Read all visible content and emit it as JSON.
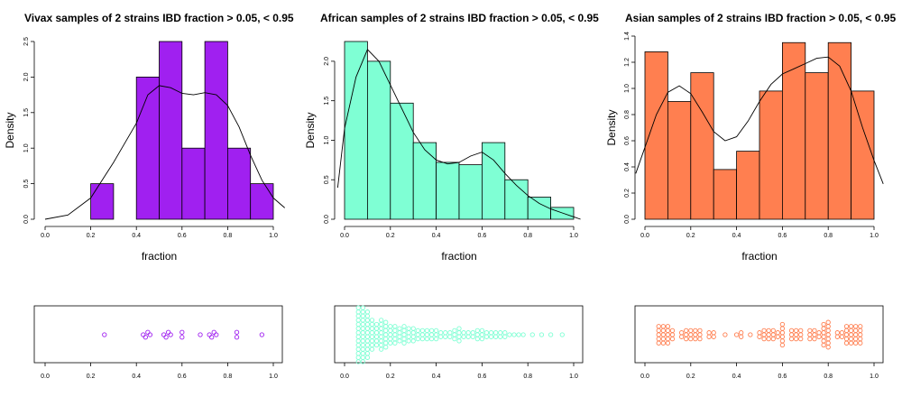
{
  "chart_data": [
    {
      "type": "histogram",
      "title": "Vivax samples of 2 strains IBD fraction > 0.05, < 0.95",
      "xlabel": "fraction",
      "ylabel": "Density",
      "xlim": [
        0,
        1
      ],
      "ylim": [
        0,
        2.5
      ],
      "xticks": [
        "0.0",
        "0.2",
        "0.4",
        "0.6",
        "0.8",
        "1.0"
      ],
      "yticks": [
        "0.0",
        "0.5",
        "1.0",
        "1.5",
        "2.0",
        "2.5"
      ],
      "bin_width": 0.1,
      "bins": [
        [
          0.2,
          0.5
        ],
        [
          0.3,
          0.0
        ],
        [
          0.4,
          2.0
        ],
        [
          0.5,
          2.5
        ],
        [
          0.6,
          1.0
        ],
        [
          0.7,
          2.5
        ],
        [
          0.8,
          1.0
        ],
        [
          0.9,
          0.5
        ]
      ],
      "color": "#A020F0",
      "density_curve": [
        [
          0.0,
          0.0
        ],
        [
          0.1,
          0.06
        ],
        [
          0.2,
          0.3
        ],
        [
          0.3,
          0.8
        ],
        [
          0.4,
          1.35
        ],
        [
          0.45,
          1.75
        ],
        [
          0.5,
          1.88
        ],
        [
          0.55,
          1.85
        ],
        [
          0.6,
          1.77
        ],
        [
          0.65,
          1.75
        ],
        [
          0.7,
          1.78
        ],
        [
          0.75,
          1.75
        ],
        [
          0.8,
          1.6
        ],
        [
          0.85,
          1.3
        ],
        [
          0.9,
          0.9
        ],
        [
          0.95,
          0.55
        ],
        [
          1.0,
          0.3
        ],
        [
          1.05,
          0.16
        ]
      ],
      "strip": {
        "xticks": [
          "0.0",
          "0.2",
          "0.4",
          "0.6",
          "0.8",
          "1.0"
        ],
        "points": [
          [
            0.26,
            0
          ],
          [
            0.43,
            0
          ],
          [
            0.44,
            1
          ],
          [
            0.45,
            -1
          ],
          [
            0.46,
            0
          ],
          [
            0.52,
            0
          ],
          [
            0.53,
            1
          ],
          [
            0.54,
            -1
          ],
          [
            0.55,
            0
          ],
          [
            0.6,
            1
          ],
          [
            0.6,
            -1
          ],
          [
            0.68,
            0
          ],
          [
            0.72,
            0
          ],
          [
            0.73,
            1
          ],
          [
            0.74,
            -1
          ],
          [
            0.75,
            0
          ],
          [
            0.84,
            1
          ],
          [
            0.84,
            -1
          ],
          [
            0.95,
            0
          ]
        ]
      }
    },
    {
      "type": "histogram",
      "title": "African samples of 2 strains IBD fraction > 0.05, < 0.95",
      "xlabel": "fraction",
      "ylabel": "Density",
      "xlim": [
        0,
        1
      ],
      "ylim": [
        0,
        2.25
      ],
      "xticks": [
        "0.0",
        "0.2",
        "0.4",
        "0.6",
        "0.8",
        "1.0"
      ],
      "yticks": [
        "0.0",
        "0.5",
        "1.0",
        "1.5",
        "2.0"
      ],
      "bin_width": 0.1,
      "bins": [
        [
          0.0,
          2.25
        ],
        [
          0.1,
          2.0
        ],
        [
          0.2,
          1.47
        ],
        [
          0.3,
          0.97
        ],
        [
          0.4,
          0.72
        ],
        [
          0.5,
          0.69
        ],
        [
          0.6,
          0.97
        ],
        [
          0.7,
          0.5
        ],
        [
          0.8,
          0.28
        ],
        [
          0.9,
          0.15
        ]
      ],
      "color": "#7FFFD4",
      "density_curve": [
        [
          -0.03,
          0.4
        ],
        [
          0.0,
          1.15
        ],
        [
          0.05,
          1.8
        ],
        [
          0.1,
          2.15
        ],
        [
          0.15,
          2.0
        ],
        [
          0.2,
          1.7
        ],
        [
          0.25,
          1.4
        ],
        [
          0.3,
          1.1
        ],
        [
          0.35,
          0.88
        ],
        [
          0.4,
          0.75
        ],
        [
          0.45,
          0.7
        ],
        [
          0.5,
          0.72
        ],
        [
          0.55,
          0.8
        ],
        [
          0.6,
          0.85
        ],
        [
          0.65,
          0.75
        ],
        [
          0.7,
          0.58
        ],
        [
          0.75,
          0.43
        ],
        [
          0.8,
          0.3
        ],
        [
          0.85,
          0.2
        ],
        [
          0.9,
          0.13
        ],
        [
          0.95,
          0.08
        ],
        [
          1.03,
          0.0
        ]
      ],
      "strip": {
        "xticks": [
          "0.0",
          "0.2",
          "0.4",
          "0.6",
          "0.8",
          "1.0"
        ],
        "density": [
          [
            0.06,
            14
          ],
          [
            0.08,
            14
          ],
          [
            0.1,
            12
          ],
          [
            0.12,
            8
          ],
          [
            0.14,
            6
          ],
          [
            0.16,
            8
          ],
          [
            0.18,
            7
          ],
          [
            0.2,
            5
          ],
          [
            0.22,
            5
          ],
          [
            0.24,
            4
          ],
          [
            0.26,
            5
          ],
          [
            0.28,
            4
          ],
          [
            0.3,
            4
          ],
          [
            0.32,
            3
          ],
          [
            0.34,
            3
          ],
          [
            0.36,
            3
          ],
          [
            0.38,
            3
          ],
          [
            0.4,
            3
          ],
          [
            0.42,
            2
          ],
          [
            0.44,
            2
          ],
          [
            0.46,
            2
          ],
          [
            0.48,
            3
          ],
          [
            0.5,
            4
          ],
          [
            0.52,
            2
          ],
          [
            0.54,
            2
          ],
          [
            0.56,
            2
          ],
          [
            0.58,
            3
          ],
          [
            0.6,
            3
          ],
          [
            0.62,
            2
          ],
          [
            0.64,
            2
          ],
          [
            0.66,
            2
          ],
          [
            0.68,
            2
          ],
          [
            0.7,
            2
          ],
          [
            0.72,
            1
          ],
          [
            0.74,
            1
          ],
          [
            0.76,
            1
          ],
          [
            0.78,
            1
          ],
          [
            0.82,
            1
          ],
          [
            0.86,
            1
          ],
          [
            0.9,
            1
          ],
          [
            0.95,
            1
          ]
        ]
      }
    },
    {
      "type": "histogram",
      "title": "Asian samples of 2 strains IBD fraction > 0.05, < 0.95",
      "xlabel": "fraction",
      "ylabel": "Density",
      "xlim": [
        0,
        1
      ],
      "ylim": [
        0,
        1.4
      ],
      "xticks": [
        "0.0",
        "0.2",
        "0.4",
        "0.6",
        "0.8",
        "1.0"
      ],
      "yticks": [
        "0.0",
        "0.2",
        "0.4",
        "0.6",
        "0.8",
        "1.0",
        "1.2",
        "1.4"
      ],
      "bin_width": 0.1,
      "bins": [
        [
          0.0,
          1.28
        ],
        [
          0.1,
          0.9
        ],
        [
          0.2,
          1.12
        ],
        [
          0.3,
          0.38
        ],
        [
          0.4,
          0.52
        ],
        [
          0.5,
          0.98
        ],
        [
          0.6,
          1.35
        ],
        [
          0.7,
          1.12
        ],
        [
          0.8,
          1.35
        ],
        [
          0.9,
          0.98
        ]
      ],
      "color": "#FF7F50",
      "density_curve": [
        [
          -0.04,
          0.35
        ],
        [
          0.0,
          0.55
        ],
        [
          0.05,
          0.8
        ],
        [
          0.1,
          0.97
        ],
        [
          0.15,
          1.02
        ],
        [
          0.2,
          0.96
        ],
        [
          0.25,
          0.82
        ],
        [
          0.3,
          0.67
        ],
        [
          0.35,
          0.6
        ],
        [
          0.4,
          0.63
        ],
        [
          0.45,
          0.75
        ],
        [
          0.5,
          0.9
        ],
        [
          0.55,
          1.03
        ],
        [
          0.6,
          1.11
        ],
        [
          0.65,
          1.15
        ],
        [
          0.7,
          1.19
        ],
        [
          0.75,
          1.23
        ],
        [
          0.8,
          1.24
        ],
        [
          0.85,
          1.17
        ],
        [
          0.9,
          0.98
        ],
        [
          0.95,
          0.7
        ],
        [
          1.0,
          0.45
        ],
        [
          1.04,
          0.27
        ]
      ],
      "strip": {
        "xticks": [
          "0.0",
          "0.2",
          "0.4",
          "0.6",
          "0.8",
          "1.0"
        ],
        "density": [
          [
            0.06,
            5
          ],
          [
            0.08,
            5
          ],
          [
            0.1,
            5
          ],
          [
            0.12,
            3
          ],
          [
            0.16,
            2
          ],
          [
            0.18,
            3
          ],
          [
            0.2,
            3
          ],
          [
            0.22,
            3
          ],
          [
            0.24,
            3
          ],
          [
            0.28,
            2
          ],
          [
            0.3,
            2
          ],
          [
            0.35,
            1
          ],
          [
            0.4,
            1
          ],
          [
            0.42,
            2
          ],
          [
            0.46,
            1
          ],
          [
            0.5,
            2
          ],
          [
            0.52,
            3
          ],
          [
            0.54,
            3
          ],
          [
            0.56,
            3
          ],
          [
            0.58,
            2
          ],
          [
            0.6,
            6
          ],
          [
            0.64,
            3
          ],
          [
            0.66,
            3
          ],
          [
            0.68,
            3
          ],
          [
            0.72,
            3
          ],
          [
            0.74,
            3
          ],
          [
            0.76,
            2
          ],
          [
            0.78,
            6
          ],
          [
            0.8,
            7
          ],
          [
            0.84,
            2
          ],
          [
            0.86,
            2
          ],
          [
            0.88,
            5
          ],
          [
            0.9,
            5
          ],
          [
            0.92,
            5
          ],
          [
            0.94,
            5
          ]
        ]
      }
    }
  ]
}
